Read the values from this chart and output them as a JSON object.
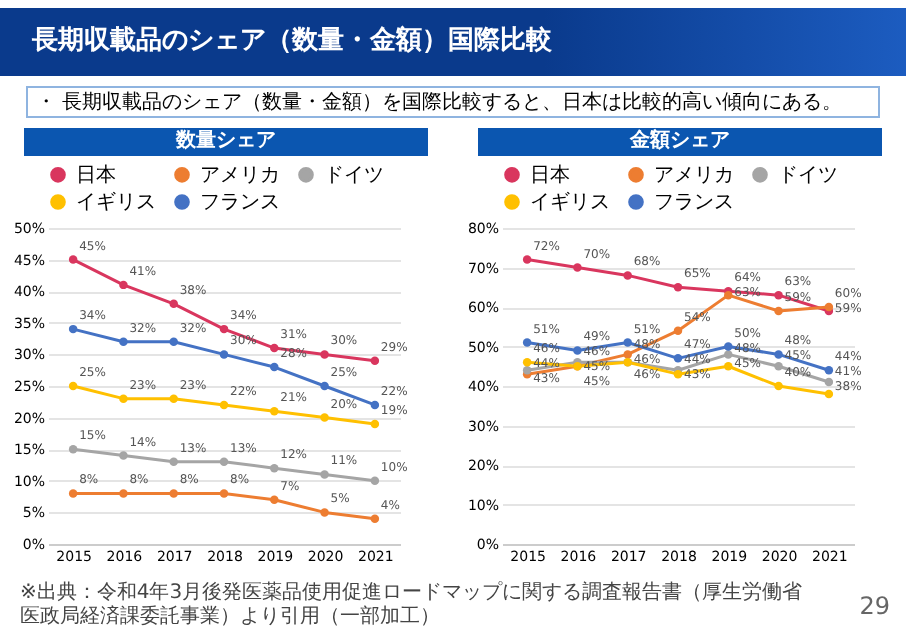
{
  "chart_data": [
    {
      "type": "line",
      "title": "数量シェア",
      "categories": [
        "2015",
        "2016",
        "2017",
        "2018",
        "2019",
        "2020",
        "2021"
      ],
      "ylim": [
        0,
        50
      ],
      "yticks": [
        {
          "value": 0,
          "label": "0%"
        },
        {
          "value": 5,
          "label": "5%"
        },
        {
          "value": 10,
          "label": "10%"
        },
        {
          "value": 15,
          "label": "15%"
        },
        {
          "value": 20,
          "label": "20%"
        },
        {
          "value": 25,
          "label": "25%"
        },
        {
          "value": 30,
          "label": "30%"
        },
        {
          "value": 35,
          "label": "35%"
        },
        {
          "value": 40,
          "label": "40%"
        },
        {
          "value": 45,
          "label": "45%"
        },
        {
          "value": 50,
          "label": "50%"
        }
      ],
      "grid": "y",
      "legend": "top",
      "marker": "circle",
      "line_style": "solid",
      "annotations": [
        "長期収載品のシェア（数量・金額）国際比較",
        "・ 長期収載品のシェア（数量・金額）を国際比較すると、日本は比較的高い傾向にある。",
        "※出典：令和4年3月後発医薬品使用促進ロードマップに関する調査報告書（厚生労働省医政局経済課委託事業）より引用（一部加工）",
        "29"
      ],
      "series": [
        {
          "name": "日本",
          "color": "#d9365e",
          "values": [
            45,
            41,
            38,
            34,
            31,
            30,
            29
          ],
          "value_labels": [
            "45%",
            "41%",
            "38%",
            "34%",
            "31%",
            "30%",
            "29%"
          ]
        },
        {
          "name": "アメリカ",
          "color": "#ed7d31",
          "values": [
            8,
            8,
            8,
            8,
            7,
            5,
            4
          ],
          "value_labels": [
            "8%",
            "8%",
            "8%",
            "8%",
            "7%",
            "5%",
            "4%"
          ]
        },
        {
          "name": "ドイツ",
          "color": "#a5a5a5",
          "values": [
            15,
            14,
            13,
            13,
            12,
            11,
            10
          ],
          "value_labels": [
            "15%",
            "14%",
            "13%",
            "13%",
            "12%",
            "11%",
            "10%"
          ]
        },
        {
          "name": "イギリス",
          "color": "#ffc000",
          "values": [
            25,
            23,
            23,
            22,
            21,
            20,
            19
          ],
          "value_labels": [
            "25%",
            "23%",
            "23%",
            "22%",
            "21%",
            "20%",
            "19%"
          ]
        },
        {
          "name": "フランス",
          "color": "#4472c4",
          "values": [
            34,
            32,
            32,
            30,
            28,
            25,
            22
          ],
          "value_labels": [
            "34%",
            "32%",
            "32%",
            "30%",
            "28%",
            "25%",
            "22%"
          ]
        }
      ]
    },
    {
      "type": "line",
      "title": "金額シェア",
      "categories": [
        "2015",
        "2016",
        "2017",
        "2018",
        "2019",
        "2020",
        "2021"
      ],
      "ylim": [
        0,
        80
      ],
      "yticks": [
        {
          "value": 0,
          "label": "0%"
        },
        {
          "value": 10,
          "label": "10%"
        },
        {
          "value": 20,
          "label": "20%"
        },
        {
          "value": 30,
          "label": "30%"
        },
        {
          "value": 40,
          "label": "40%"
        },
        {
          "value": 50,
          "label": "50%"
        },
        {
          "value": 60,
          "label": "60%"
        },
        {
          "value": 70,
          "label": "70%"
        },
        {
          "value": 80,
          "label": "80%"
        }
      ],
      "grid": "y",
      "legend": "top",
      "marker": "circle",
      "line_style": "solid",
      "series": [
        {
          "name": "日本",
          "color": "#d9365e",
          "values": [
            72,
            70,
            68,
            65,
            64,
            63,
            59
          ],
          "value_labels": [
            "72%",
            "70%",
            "68%",
            "65%",
            "64%",
            "63%",
            "59%"
          ]
        },
        {
          "name": "アメリカ",
          "color": "#ed7d31",
          "values": [
            43,
            45,
            48,
            54,
            63,
            59,
            60
          ],
          "value_labels": [
            "43%",
            "45%",
            "48%",
            "54%",
            "63%",
            "59%",
            "60%"
          ]
        },
        {
          "name": "ドイツ",
          "color": "#a5a5a5",
          "values": [
            44,
            46,
            46,
            44,
            48,
            45,
            41
          ],
          "value_labels": [
            "44%",
            "46%",
            "46%",
            "44%",
            "48%",
            "45%",
            "41%"
          ]
        },
        {
          "name": "イギリス",
          "color": "#ffc000",
          "values": [
            46,
            45,
            46,
            43,
            45,
            40,
            38
          ],
          "value_labels": [
            "46%",
            "45%",
            "46%",
            "43%",
            "45%",
            "40%",
            "38%"
          ]
        },
        {
          "name": "フランス",
          "color": "#4472c4",
          "values": [
            51,
            49,
            51,
            47,
            50,
            48,
            44
          ],
          "value_labels": [
            "51%",
            "49%",
            "51%",
            "47%",
            "50%",
            "48%",
            "44%"
          ]
        }
      ]
    }
  ]
}
